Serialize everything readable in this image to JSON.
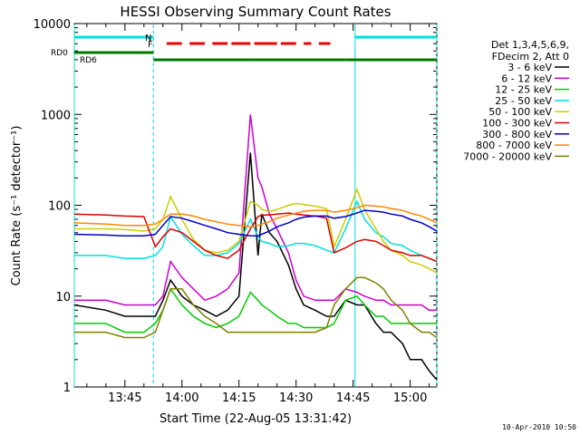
{
  "chart_data": {
    "type": "line",
    "title": "HESSI Observing Summary Count Rates",
    "xlabel": "Start Time (22-Aug-05 13:31:42)",
    "ylabel": "Count Rate (s⁻¹ detector⁻¹)",
    "x_range": [
      "13:31:42",
      "15:11:00"
    ],
    "y_range": [
      1,
      10000
    ],
    "y_scale": "log",
    "x_ticks": [
      "13:45",
      "14:00",
      "14:15",
      "14:30",
      "14:45",
      "15:00"
    ],
    "y_ticks": [
      "1",
      "10",
      "100",
      "1000",
      "10000"
    ],
    "x_tick_minutes": [
      45,
      60,
      75,
      90,
      105,
      120
    ],
    "legend_header": [
      "Det 1,3,4,5,6,9,",
      "FDecim 2, Att 0"
    ],
    "legend_position": "right",
    "timestamp": "10-Apr-2010 10:50",
    "grid": false,
    "series_x": [
      31.7,
      40,
      45,
      50,
      53,
      55,
      57,
      60,
      63,
      66,
      69,
      72,
      75,
      78,
      80,
      81,
      83,
      85,
      88,
      90,
      92,
      95,
      98,
      100,
      103,
      106,
      108,
      111,
      113,
      115,
      118,
      120,
      123,
      125,
      127
    ],
    "series": [
      {
        "name": "3 - 6 keV",
        "color": "#000000",
        "values": [
          8,
          7,
          6,
          6,
          6,
          9,
          15,
          10,
          8,
          7,
          6,
          7,
          10,
          380,
          28,
          80,
          50,
          40,
          22,
          12,
          8,
          7,
          6,
          6,
          9,
          8,
          8,
          5,
          4,
          4,
          3,
          2,
          2,
          1.5,
          1.2
        ]
      },
      {
        "name": "6 - 12 keV",
        "color": "#cc00cc",
        "values": [
          9,
          9,
          8,
          8,
          8,
          10,
          24,
          16,
          12,
          9,
          10,
          12,
          18,
          1000,
          200,
          160,
          80,
          55,
          30,
          15,
          10,
          9,
          9,
          9,
          12,
          11,
          10,
          9,
          9,
          8,
          8,
          8,
          8,
          7,
          7
        ]
      },
      {
        "name": "12 - 25 keV",
        "color": "#00cc00",
        "values": [
          5,
          5,
          4,
          4,
          5,
          7,
          12,
          8,
          6,
          5,
          4.5,
          5,
          6,
          11,
          9,
          8,
          7,
          6,
          5,
          5,
          4.5,
          4.5,
          4.5,
          5,
          9,
          10,
          8,
          6,
          6,
          5,
          5,
          5,
          5,
          5,
          5
        ]
      },
      {
        "name": "25 - 50 keV",
        "color": "#00e0e0",
        "values": [
          28,
          28,
          26,
          26,
          28,
          35,
          75,
          48,
          36,
          28,
          28,
          30,
          38,
          70,
          45,
          40,
          38,
          35,
          36,
          38,
          38,
          36,
          32,
          30,
          55,
          110,
          70,
          50,
          45,
          38,
          36,
          32,
          28,
          26,
          24
        ]
      },
      {
        "name": "50 - 100 keV",
        "color": "#cccc00",
        "values": [
          55,
          55,
          54,
          52,
          55,
          70,
          125,
          70,
          42,
          32,
          30,
          32,
          40,
          110,
          100,
          90,
          85,
          90,
          100,
          105,
          102,
          98,
          92,
          35,
          70,
          150,
          90,
          55,
          40,
          32,
          28,
          24,
          22,
          20,
          18
        ]
      },
      {
        "name": "100 - 300 keV",
        "color": "#dd0000",
        "values": [
          80,
          78,
          76,
          75,
          35,
          45,
          55,
          50,
          40,
          32,
          28,
          26,
          32,
          55,
          75,
          78,
          78,
          80,
          82,
          80,
          78,
          76,
          72,
          30,
          34,
          40,
          42,
          40,
          36,
          32,
          30,
          28,
          28,
          26,
          24
        ]
      },
      {
        "name": "300 - 800 keV",
        "color": "#0000cc",
        "values": [
          48,
          47,
          46,
          46,
          48,
          60,
          75,
          72,
          66,
          60,
          55,
          50,
          48,
          46,
          46,
          48,
          52,
          58,
          64,
          70,
          74,
          76,
          76,
          72,
          75,
          82,
          88,
          86,
          84,
          80,
          76,
          70,
          64,
          58,
          52
        ]
      },
      {
        "name": "800 - 7000 keV",
        "color": "#ff8800",
        "values": [
          64,
          62,
          60,
          60,
          62,
          70,
          80,
          80,
          76,
          70,
          66,
          62,
          60,
          58,
          60,
          62,
          66,
          72,
          78,
          82,
          86,
          88,
          88,
          84,
          88,
          94,
          100,
          98,
          96,
          92,
          88,
          82,
          76,
          70,
          64
        ]
      },
      {
        "name": "7000 - 20000 keV",
        "color": "#808000",
        "values": [
          4,
          4,
          3.5,
          3.5,
          4,
          7,
          12,
          12,
          8,
          6,
          5,
          4,
          4,
          4,
          4,
          4,
          4,
          4,
          4,
          4,
          4,
          4,
          4.5,
          8,
          12,
          16,
          16,
          14,
          12,
          9,
          7,
          5,
          4,
          4,
          3.5
        ]
      }
    ],
    "state_bars": {
      "N": {
        "label": "N",
        "color": "#00e0e0",
        "segments": [
          [
            31.7,
            52.5
          ],
          [
            105.5,
            127
          ]
        ]
      },
      "F": {
        "label": "F",
        "color": "#ee0000",
        "segments": [
          [
            56,
            60
          ],
          [
            62,
            66
          ],
          [
            68,
            72
          ],
          [
            73,
            78
          ],
          [
            79,
            85
          ],
          [
            86,
            90
          ],
          [
            92,
            94
          ],
          [
            96,
            99
          ]
        ]
      },
      "RD0": {
        "label": "RD0",
        "color": "#007700",
        "segments": [
          [
            31.7,
            52.5
          ]
        ]
      },
      "RD6": {
        "label": "RD6",
        "color": "#007700",
        "segments": [
          [
            52.5,
            79
          ],
          [
            79,
            103
          ],
          [
            103,
            127
          ]
        ]
      }
    },
    "vertical_markers_minutes": [
      31.7,
      52.5,
      105.5,
      127
    ]
  }
}
